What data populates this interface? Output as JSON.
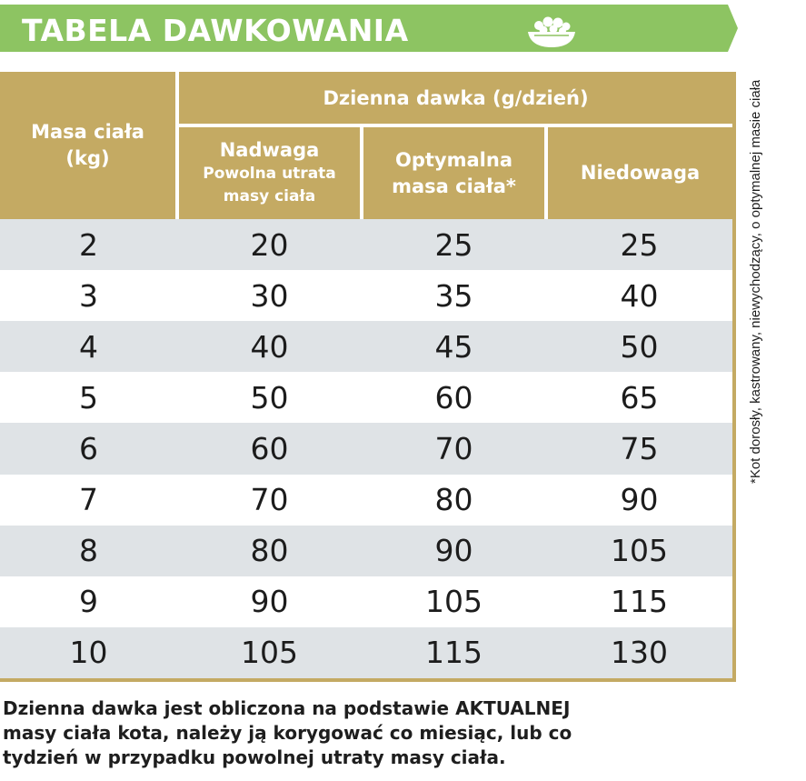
{
  "header": {
    "title": "TABELA DAWKOWANIA",
    "icon": "food-bowl-icon",
    "banner_color": "#8dc462"
  },
  "table": {
    "header_color": "#c4aa63",
    "row_alt_color": "#dfe3e6",
    "mass_header": {
      "line1": "Masa ciała",
      "line2": "(kg)"
    },
    "daily_dose_header": "Dzienna dawka (g/dzień)",
    "columns": [
      {
        "line1": "Nadwaga",
        "line2": "Powolna utrata",
        "line3": "masy ciała"
      },
      {
        "line1": "Optymalna",
        "line2": "masa ciała*"
      },
      {
        "line1": "Niedowaga"
      }
    ],
    "rows": [
      {
        "mass": "2",
        "overweight": "20",
        "optimal": "25",
        "underweight": "25"
      },
      {
        "mass": "3",
        "overweight": "30",
        "optimal": "35",
        "underweight": "40"
      },
      {
        "mass": "4",
        "overweight": "40",
        "optimal": "45",
        "underweight": "50"
      },
      {
        "mass": "5",
        "overweight": "50",
        "optimal": "60",
        "underweight": "65"
      },
      {
        "mass": "6",
        "overweight": "60",
        "optimal": "70",
        "underweight": "75"
      },
      {
        "mass": "7",
        "overweight": "70",
        "optimal": "80",
        "underweight": "90"
      },
      {
        "mass": "8",
        "overweight": "80",
        "optimal": "90",
        "underweight": "105"
      },
      {
        "mass": "9",
        "overweight": "90",
        "optimal": "105",
        "underweight": "115"
      },
      {
        "mass": "10",
        "overweight": "105",
        "optimal": "115",
        "underweight": "130"
      }
    ]
  },
  "side_note": "*Kot dorosły, kastrowany, niewychodzący, o optymalnej masie ciała",
  "footer": {
    "line1": "Dzienna dawka jest obliczona na podstawie AKTUALNEJ",
    "line2": "masy ciała kota, należy ją korygować co miesiąc, lub co",
    "line3": "tydzień w przypadku powolnej utraty masy ciała."
  }
}
